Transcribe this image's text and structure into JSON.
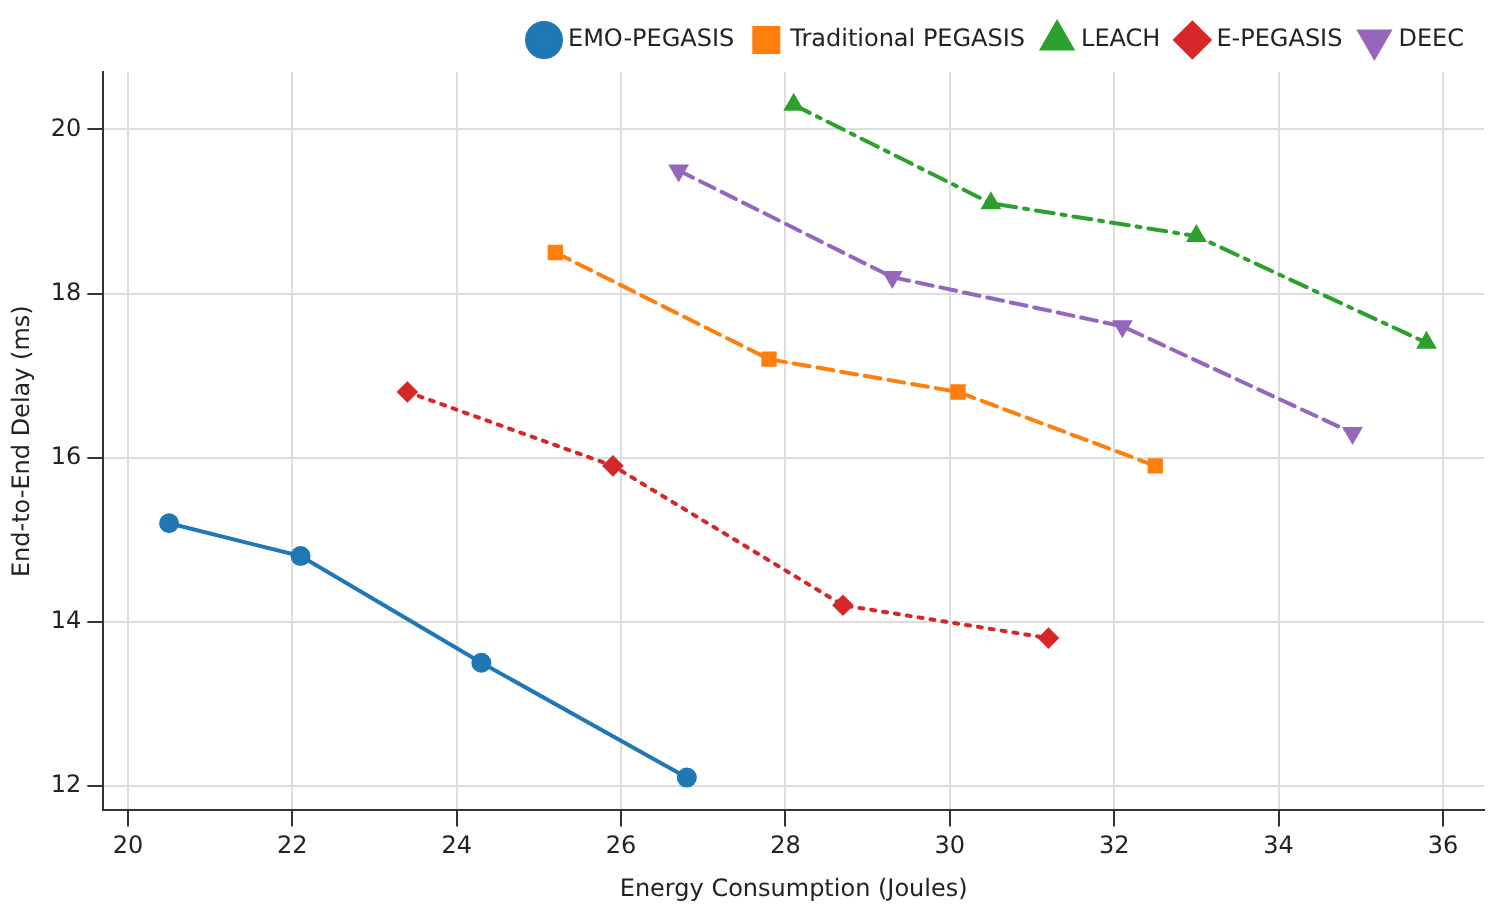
{
  "chart_data": {
    "type": "line",
    "xlabel": "Energy Consumption (Joules)",
    "ylabel": "End-to-End Delay (ms)",
    "xlim": [
      19.7,
      36.5
    ],
    "xticks": [
      20,
      22,
      24,
      26,
      28,
      30,
      32,
      34,
      36
    ],
    "ylim": [
      11.7,
      20.7
    ],
    "yticks": [
      12,
      14,
      16,
      18,
      20
    ],
    "grid": true,
    "legend": "top right",
    "series": [
      {
        "name": "EMO-PEGASIS",
        "color": "#1f77b4",
        "marker": "circle",
        "line_style": "solid",
        "x": [
          20.5,
          22.1,
          24.3,
          26.8
        ],
        "values": [
          15.2,
          14.8,
          13.5,
          12.1
        ]
      },
      {
        "name": "Traditional PEGASIS",
        "color": "#ff7f0e",
        "marker": "square",
        "line_style": "dashed",
        "x": [
          25.2,
          27.8,
          30.1,
          32.5
        ],
        "values": [
          18.5,
          17.2,
          16.8,
          15.9
        ]
      },
      {
        "name": "LEACH",
        "color": "#2ca02c",
        "marker": "triangle",
        "line_style": "dashdot",
        "x": [
          28.1,
          30.5,
          33.0,
          35.8
        ],
        "values": [
          20.3,
          19.1,
          18.7,
          17.4
        ]
      },
      {
        "name": "E-PEGASIS",
        "color": "#d62728",
        "marker": "diamond",
        "line_style": "dotted",
        "x": [
          23.4,
          25.9,
          28.7,
          31.2
        ],
        "values": [
          16.8,
          15.9,
          14.2,
          13.8
        ]
      },
      {
        "name": "DEEC",
        "color": "#9467bd",
        "marker": "triangle-down",
        "line_style": "dashed",
        "x": [
          26.7,
          29.3,
          32.1,
          34.9
        ],
        "values": [
          19.5,
          18.2,
          17.6,
          16.3
        ]
      }
    ]
  }
}
